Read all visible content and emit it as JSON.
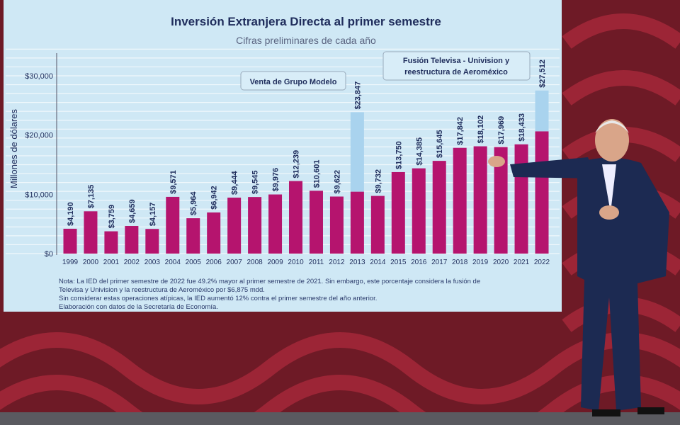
{
  "colors": {
    "bar": "#b5146e",
    "atypical": "#a9d3ee",
    "title": "#1f2d5c",
    "screen": "#cfe8f5",
    "backdrop": "#7a1c2a"
  },
  "chart_data": {
    "type": "bar",
    "title": "Inversión Extranjera Directa al primer semestre",
    "subtitle": "Cifras preliminares de cada año",
    "ylabel": "Millones de dólares",
    "xlabel": "",
    "ylim": [
      0,
      30000
    ],
    "yticks": [
      "$0",
      "$10,000",
      "$20,000",
      "$30,000"
    ],
    "ytick_values": [
      0,
      10000,
      20000,
      30000
    ],
    "categories": [
      "1999",
      "2000",
      "2001",
      "2002",
      "2003",
      "2004",
      "2005",
      "2006",
      "2007",
      "2008",
      "2009",
      "2010",
      "2011",
      "2012",
      "2013",
      "2014",
      "2015",
      "2016",
      "2017",
      "2018",
      "2019",
      "2020",
      "2021",
      "2022"
    ],
    "values": [
      4190,
      7135,
      3759,
      4659,
      4157,
      9571,
      5964,
      6942,
      9444,
      9545,
      9976,
      12239,
      10601,
      9622,
      23847,
      9732,
      13750,
      14385,
      15645,
      17842,
      18102,
      17969,
      18433,
      27512
    ],
    "labels": [
      "$4,190",
      "$7,135",
      "$3,759",
      "$4,659",
      "$4,157",
      "$9,571",
      "$5,964",
      "$6,942",
      "$9,444",
      "$9,545",
      "$9,976",
      "$12,239",
      "$10,601",
      "$9,622",
      "$23,847",
      "$9,732",
      "$13,750",
      "$14,385",
      "$15,645",
      "$17,842",
      "$18,102",
      "$17,969",
      "$18,433",
      "$27,512"
    ],
    "atypical_portion": {
      "2013": 13400,
      "2022": 6875
    },
    "annotations": [
      {
        "text": "Venta de Grupo Modelo",
        "category": "2013"
      },
      {
        "text": "Fusión Televisa - Univision y",
        "text2": "reestructura de Aeroméxico",
        "category": "2022"
      }
    ],
    "grid": true,
    "legend": "none"
  },
  "notes": [
    "Nota: La IED del primer semestre de 2022 fue 49.2% mayor al primer semestre de 2021. Sin embargo, este porcentaje considera la fusión de",
    "Televisa y Univision y la reestructura de Aeroméxico por $6,875 mdd.",
    "Sin considerar estas operaciones atípicas, la IED aumentó 12% contra el primer semestre del año anterior.",
    "Elaboración con datos de la Secretaría de Economía."
  ]
}
